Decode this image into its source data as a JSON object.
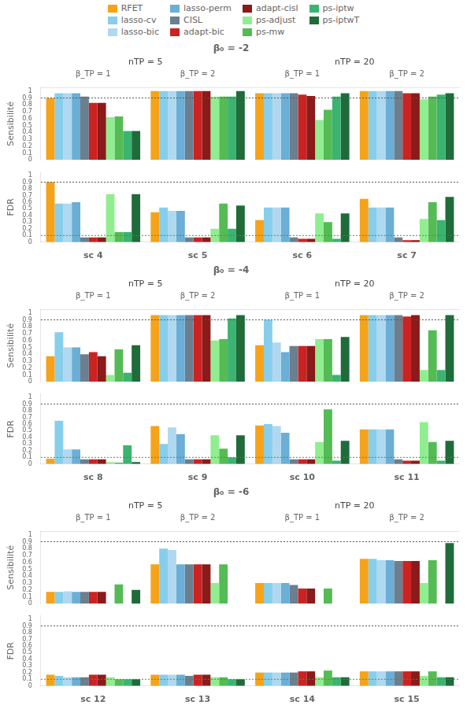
{
  "chart_data": [
    {
      "type": "bar",
      "title": "β₀ = -2",
      "ylabel": "Sensibilité",
      "legend": "top",
      "grid": false,
      "annotations": [
        "nTP = 5",
        "nTP = 20"
      ],
      "categories": [
        "β_TP = 1",
        "β_TP = 2",
        "β_TP = 1",
        "β_TP = 2"
      ],
      "ylim": [
        0,
        1.05
      ],
      "yticks": [
        0,
        0.1,
        0.2,
        0.3,
        0.4,
        0.5,
        0.6,
        0.7,
        0.8,
        0.9,
        1
      ],
      "hlines": [
        {
          "value": 0.9,
          "color": "#555",
          "line_style": "dotted"
        }
      ],
      "series": [
        {
          "name": "RFET",
          "color": "#F5A31A",
          "values": [
            0.9,
            1.0,
            0.97,
            1.0
          ]
        },
        {
          "name": "lasso-cv",
          "color": "#87CEEB",
          "values": [
            0.97,
            1.0,
            0.97,
            1.0
          ]
        },
        {
          "name": "lasso-bic",
          "color": "#B0D8F0",
          "values": [
            0.97,
            1.0,
            0.97,
            1.0
          ]
        },
        {
          "name": "lasso-perm",
          "color": "#6BAED6",
          "values": [
            0.97,
            1.0,
            0.97,
            1.0
          ]
        },
        {
          "name": "CISL",
          "color": "#6B7F8E",
          "values": [
            0.92,
            1.0,
            0.97,
            1.0
          ]
        },
        {
          "name": "adapt-bic",
          "color": "#CC2222",
          "values": [
            0.83,
            1.0,
            0.95,
            0.97
          ]
        },
        {
          "name": "adapt-cisl",
          "color": "#8B1A1A",
          "values": [
            0.83,
            1.0,
            0.93,
            0.97
          ]
        },
        {
          "name": "ps-adjust",
          "color": "#90EE90",
          "values": [
            0.62,
            0.92,
            0.58,
            0.88
          ]
        },
        {
          "name": "ps-mw",
          "color": "#55BB55",
          "values": [
            0.63,
            0.92,
            0.73,
            0.92
          ]
        },
        {
          "name": "ps-iptw",
          "color": "#3CB371",
          "values": [
            0.42,
            0.92,
            0.92,
            0.95
          ]
        },
        {
          "name": "ps-iptwT",
          "color": "#1F6B3A",
          "values": [
            0.42,
            1.0,
            0.97,
            0.97
          ]
        }
      ]
    },
    {
      "type": "bar",
      "ylabel": "FDR",
      "grid": false,
      "categories": [
        "sc 4",
        "sc 5",
        "sc 6",
        "sc 7"
      ],
      "ylim": [
        0,
        1.05
      ],
      "yticks": [
        0,
        0.1,
        0.2,
        0.3,
        0.4,
        0.5,
        0.6,
        0.7,
        0.8,
        0.9,
        1
      ],
      "hlines": [
        {
          "value": 0.9,
          "color": "#555",
          "line_style": "dotted"
        },
        {
          "value": 0.1,
          "color": "#558B2F",
          "line_style": "dotted"
        }
      ],
      "series": [
        {
          "name": "RFET",
          "color": "#F5A31A",
          "values": [
            0.9,
            0.45,
            0.33,
            0.65
          ]
        },
        {
          "name": "lasso-cv",
          "color": "#87CEEB",
          "values": [
            0.58,
            0.52,
            0.52,
            0.52
          ]
        },
        {
          "name": "lasso-bic",
          "color": "#B0D8F0",
          "values": [
            0.58,
            0.47,
            0.52,
            0.52
          ]
        },
        {
          "name": "lasso-perm",
          "color": "#6BAED6",
          "values": [
            0.6,
            0.47,
            0.52,
            0.52
          ]
        },
        {
          "name": "CISL",
          "color": "#6B7F8E",
          "values": [
            0.07,
            0.07,
            0.07,
            0.07
          ]
        },
        {
          "name": "adapt-bic",
          "color": "#CC2222",
          "values": [
            0.07,
            0.07,
            0.05,
            0.03
          ]
        },
        {
          "name": "adapt-cisl",
          "color": "#8B1A1A",
          "values": [
            0.07,
            0.07,
            0.05,
            0.03
          ]
        },
        {
          "name": "ps-adjust",
          "color": "#90EE90",
          "values": [
            0.72,
            0.2,
            0.43,
            0.35
          ]
        },
        {
          "name": "ps-mw",
          "color": "#55BB55",
          "values": [
            0.15,
            0.58,
            0.3,
            0.6
          ]
        },
        {
          "name": "ps-iptw",
          "color": "#3CB371",
          "values": [
            0.15,
            0.2,
            0.05,
            0.33
          ]
        },
        {
          "name": "ps-iptwT",
          "color": "#1F6B3A",
          "values": [
            0.72,
            0.55,
            0.43,
            0.68
          ]
        }
      ]
    },
    {
      "type": "bar",
      "title": "β₀ = -4",
      "ylabel": "Sensibilité",
      "grid": false,
      "annotations": [
        "nTP = 5",
        "nTP = 20"
      ],
      "categories": [
        "β_TP = 1",
        "β_TP = 2",
        "β_TP = 1",
        "β_TP = 2"
      ],
      "ylim": [
        0,
        1.05
      ],
      "yticks": [
        0,
        0.1,
        0.2,
        0.3,
        0.4,
        0.5,
        0.6,
        0.7,
        0.8,
        0.9,
        1
      ],
      "hlines": [
        {
          "value": 0.9,
          "color": "#555",
          "line_style": "dotted"
        }
      ],
      "series": [
        {
          "name": "RFET",
          "color": "#F5A31A",
          "values": [
            0.37,
            0.97,
            0.53,
            0.97
          ]
        },
        {
          "name": "lasso-cv",
          "color": "#87CEEB",
          "values": [
            0.72,
            0.97,
            0.9,
            0.97
          ]
        },
        {
          "name": "lasso-bic",
          "color": "#B0D8F0",
          "values": [
            0.5,
            0.97,
            0.57,
            0.97
          ]
        },
        {
          "name": "lasso-perm",
          "color": "#6BAED6",
          "values": [
            0.5,
            0.97,
            0.43,
            0.97
          ]
        },
        {
          "name": "CISL",
          "color": "#6B7F8E",
          "values": [
            0.4,
            0.97,
            0.52,
            0.97
          ]
        },
        {
          "name": "adapt-bic",
          "color": "#CC2222",
          "values": [
            0.43,
            0.97,
            0.52,
            0.95
          ]
        },
        {
          "name": "adapt-cisl",
          "color": "#8B1A1A",
          "values": [
            0.37,
            0.97,
            0.52,
            0.97
          ]
        },
        {
          "name": "ps-adjust",
          "color": "#90EE90",
          "values": [
            0.1,
            0.6,
            0.62,
            0.17
          ]
        },
        {
          "name": "ps-mw",
          "color": "#55BB55",
          "values": [
            0.47,
            0.62,
            0.62,
            0.75
          ]
        },
        {
          "name": "ps-iptw",
          "color": "#3CB371",
          "values": [
            0.13,
            0.92,
            0.1,
            0.17
          ]
        },
        {
          "name": "ps-iptwT",
          "color": "#1F6B3A",
          "values": [
            0.53,
            0.97,
            0.65,
            0.97
          ]
        }
      ]
    },
    {
      "type": "bar",
      "ylabel": "FDR",
      "grid": false,
      "categories": [
        "sc 8",
        "sc 9",
        "sc 10",
        "sc 11"
      ],
      "ylim": [
        0,
        1.05
      ],
      "yticks": [
        0,
        0.1,
        0.2,
        0.3,
        0.4,
        0.5,
        0.6,
        0.7,
        0.8,
        0.9,
        1
      ],
      "hlines": [
        {
          "value": 0.9,
          "color": "#555",
          "line_style": "dotted"
        },
        {
          "value": 0.1,
          "color": "#558B2F",
          "line_style": "dotted"
        }
      ],
      "series": [
        {
          "name": "RFET",
          "color": "#F5A31A",
          "values": [
            0.08,
            0.57,
            0.58,
            0.52
          ]
        },
        {
          "name": "lasso-cv",
          "color": "#87CEEB",
          "values": [
            0.65,
            0.3,
            0.6,
            0.52
          ]
        },
        {
          "name": "lasso-bic",
          "color": "#B0D8F0",
          "values": [
            0.22,
            0.55,
            0.57,
            0.52
          ]
        },
        {
          "name": "lasso-perm",
          "color": "#6BAED6",
          "values": [
            0.22,
            0.45,
            0.47,
            0.52
          ]
        },
        {
          "name": "CISL",
          "color": "#6B7F8E",
          "values": [
            0.07,
            0.07,
            0.07,
            0.07
          ]
        },
        {
          "name": "adapt-bic",
          "color": "#CC2222",
          "values": [
            0.07,
            0.07,
            0.07,
            0.05
          ]
        },
        {
          "name": "adapt-cisl",
          "color": "#8B1A1A",
          "values": [
            0.07,
            0.07,
            0.07,
            0.05
          ]
        },
        {
          "name": "ps-adjust",
          "color": "#90EE90",
          "values": [
            0.03,
            0.43,
            0.33,
            0.63
          ]
        },
        {
          "name": "ps-mw",
          "color": "#55BB55",
          "values": [
            0.02,
            0.23,
            0.82,
            0.33
          ]
        },
        {
          "name": "ps-iptw",
          "color": "#3CB371",
          "values": [
            0.28,
            0.1,
            0.05,
            0.05
          ]
        },
        {
          "name": "ps-iptwT",
          "color": "#1F6B3A",
          "values": [
            0.03,
            0.43,
            0.35,
            0.35
          ]
        }
      ]
    },
    {
      "type": "bar",
      "title": "β₀ = -6",
      "ylabel": "Sensibilité",
      "grid": false,
      "annotations": [
        "nTP = 5",
        "nTP = 20"
      ],
      "categories": [
        "β_TP = 1",
        "β_TP = 2",
        "β_TP = 1",
        "β_TP = 2"
      ],
      "ylim": [
        0,
        1.05
      ],
      "yticks": [
        0,
        0.1,
        0.2,
        0.3,
        0.4,
        0.5,
        0.6,
        0.7,
        0.8,
        0.9,
        1
      ],
      "hlines": [
        {
          "value": 0.9,
          "color": "#555",
          "line_style": "dotted"
        }
      ],
      "series": [
        {
          "name": "RFET",
          "color": "#F5A31A",
          "values": [
            0.17,
            0.57,
            0.3,
            0.65
          ]
        },
        {
          "name": "lasso-cv",
          "color": "#87CEEB",
          "values": [
            0.17,
            0.8,
            0.3,
            0.65
          ]
        },
        {
          "name": "lasso-bic",
          "color": "#B0D8F0",
          "values": [
            0.18,
            0.78,
            0.3,
            0.63
          ]
        },
        {
          "name": "lasso-perm",
          "color": "#6BAED6",
          "values": [
            0.17,
            0.57,
            0.3,
            0.63
          ]
        },
        {
          "name": "CISL",
          "color": "#6B7F8E",
          "values": [
            0.17,
            0.57,
            0.27,
            0.62
          ]
        },
        {
          "name": "adapt-bic",
          "color": "#CC2222",
          "values": [
            0.17,
            0.57,
            0.22,
            0.62
          ]
        },
        {
          "name": "adapt-cisl",
          "color": "#8B1A1A",
          "values": [
            0.17,
            0.57,
            0.22,
            0.62
          ]
        },
        {
          "name": "ps-adjust",
          "color": "#90EE90",
          "values": [
            0.0,
            0.3,
            0.0,
            0.3
          ]
        },
        {
          "name": "ps-mw",
          "color": "#55BB55",
          "values": [
            0.28,
            0.57,
            0.22,
            0.63
          ]
        },
        {
          "name": "ps-iptw",
          "color": "#3CB371",
          "values": [
            0.0,
            0.0,
            0.0,
            0.0
          ]
        },
        {
          "name": "ps-iptwT",
          "color": "#1F6B3A",
          "values": [
            0.2,
            0.0,
            0.0,
            0.88
          ]
        }
      ]
    },
    {
      "type": "bar",
      "ylabel": "FDR",
      "grid": false,
      "categories": [
        "sc 12",
        "sc 13",
        "sc 14",
        "sc 15"
      ],
      "ylim": [
        0,
        1.05
      ],
      "yticks": [
        0,
        0.1,
        0.2,
        0.3,
        0.4,
        0.5,
        0.6,
        0.7,
        0.8,
        0.9,
        1
      ],
      "hlines": [
        {
          "value": 0.9,
          "color": "#555",
          "line_style": "dotted"
        },
        {
          "value": 0.1,
          "color": "#558B2F",
          "line_style": "dotted"
        }
      ],
      "series": [
        {
          "name": "RFET",
          "color": "#F5A31A",
          "values": [
            0.17,
            0.17,
            0.2,
            0.22
          ]
        },
        {
          "name": "lasso-cv",
          "color": "#87CEEB",
          "values": [
            0.15,
            0.17,
            0.2,
            0.22
          ]
        },
        {
          "name": "lasso-bic",
          "color": "#B0D8F0",
          "values": [
            0.13,
            0.17,
            0.2,
            0.22
          ]
        },
        {
          "name": "lasso-perm",
          "color": "#6BAED6",
          "values": [
            0.13,
            0.17,
            0.2,
            0.22
          ]
        },
        {
          "name": "CISL",
          "color": "#6B7F8E",
          "values": [
            0.13,
            0.15,
            0.2,
            0.22
          ]
        },
        {
          "name": "adapt-bic",
          "color": "#CC2222",
          "values": [
            0.17,
            0.17,
            0.22,
            0.22
          ]
        },
        {
          "name": "adapt-cisl",
          "color": "#8B1A1A",
          "values": [
            0.17,
            0.17,
            0.22,
            0.22
          ]
        },
        {
          "name": "ps-adjust",
          "color": "#90EE90",
          "values": [
            0.13,
            0.13,
            0.13,
            0.15
          ]
        },
        {
          "name": "ps-mw",
          "color": "#55BB55",
          "values": [
            0.1,
            0.13,
            0.23,
            0.22
          ]
        },
        {
          "name": "ps-iptw",
          "color": "#3CB371",
          "values": [
            0.1,
            0.1,
            0.13,
            0.13
          ]
        },
        {
          "name": "ps-iptwT",
          "color": "#1F6B3A",
          "values": [
            0.1,
            0.1,
            0.13,
            0.13
          ]
        }
      ]
    }
  ]
}
